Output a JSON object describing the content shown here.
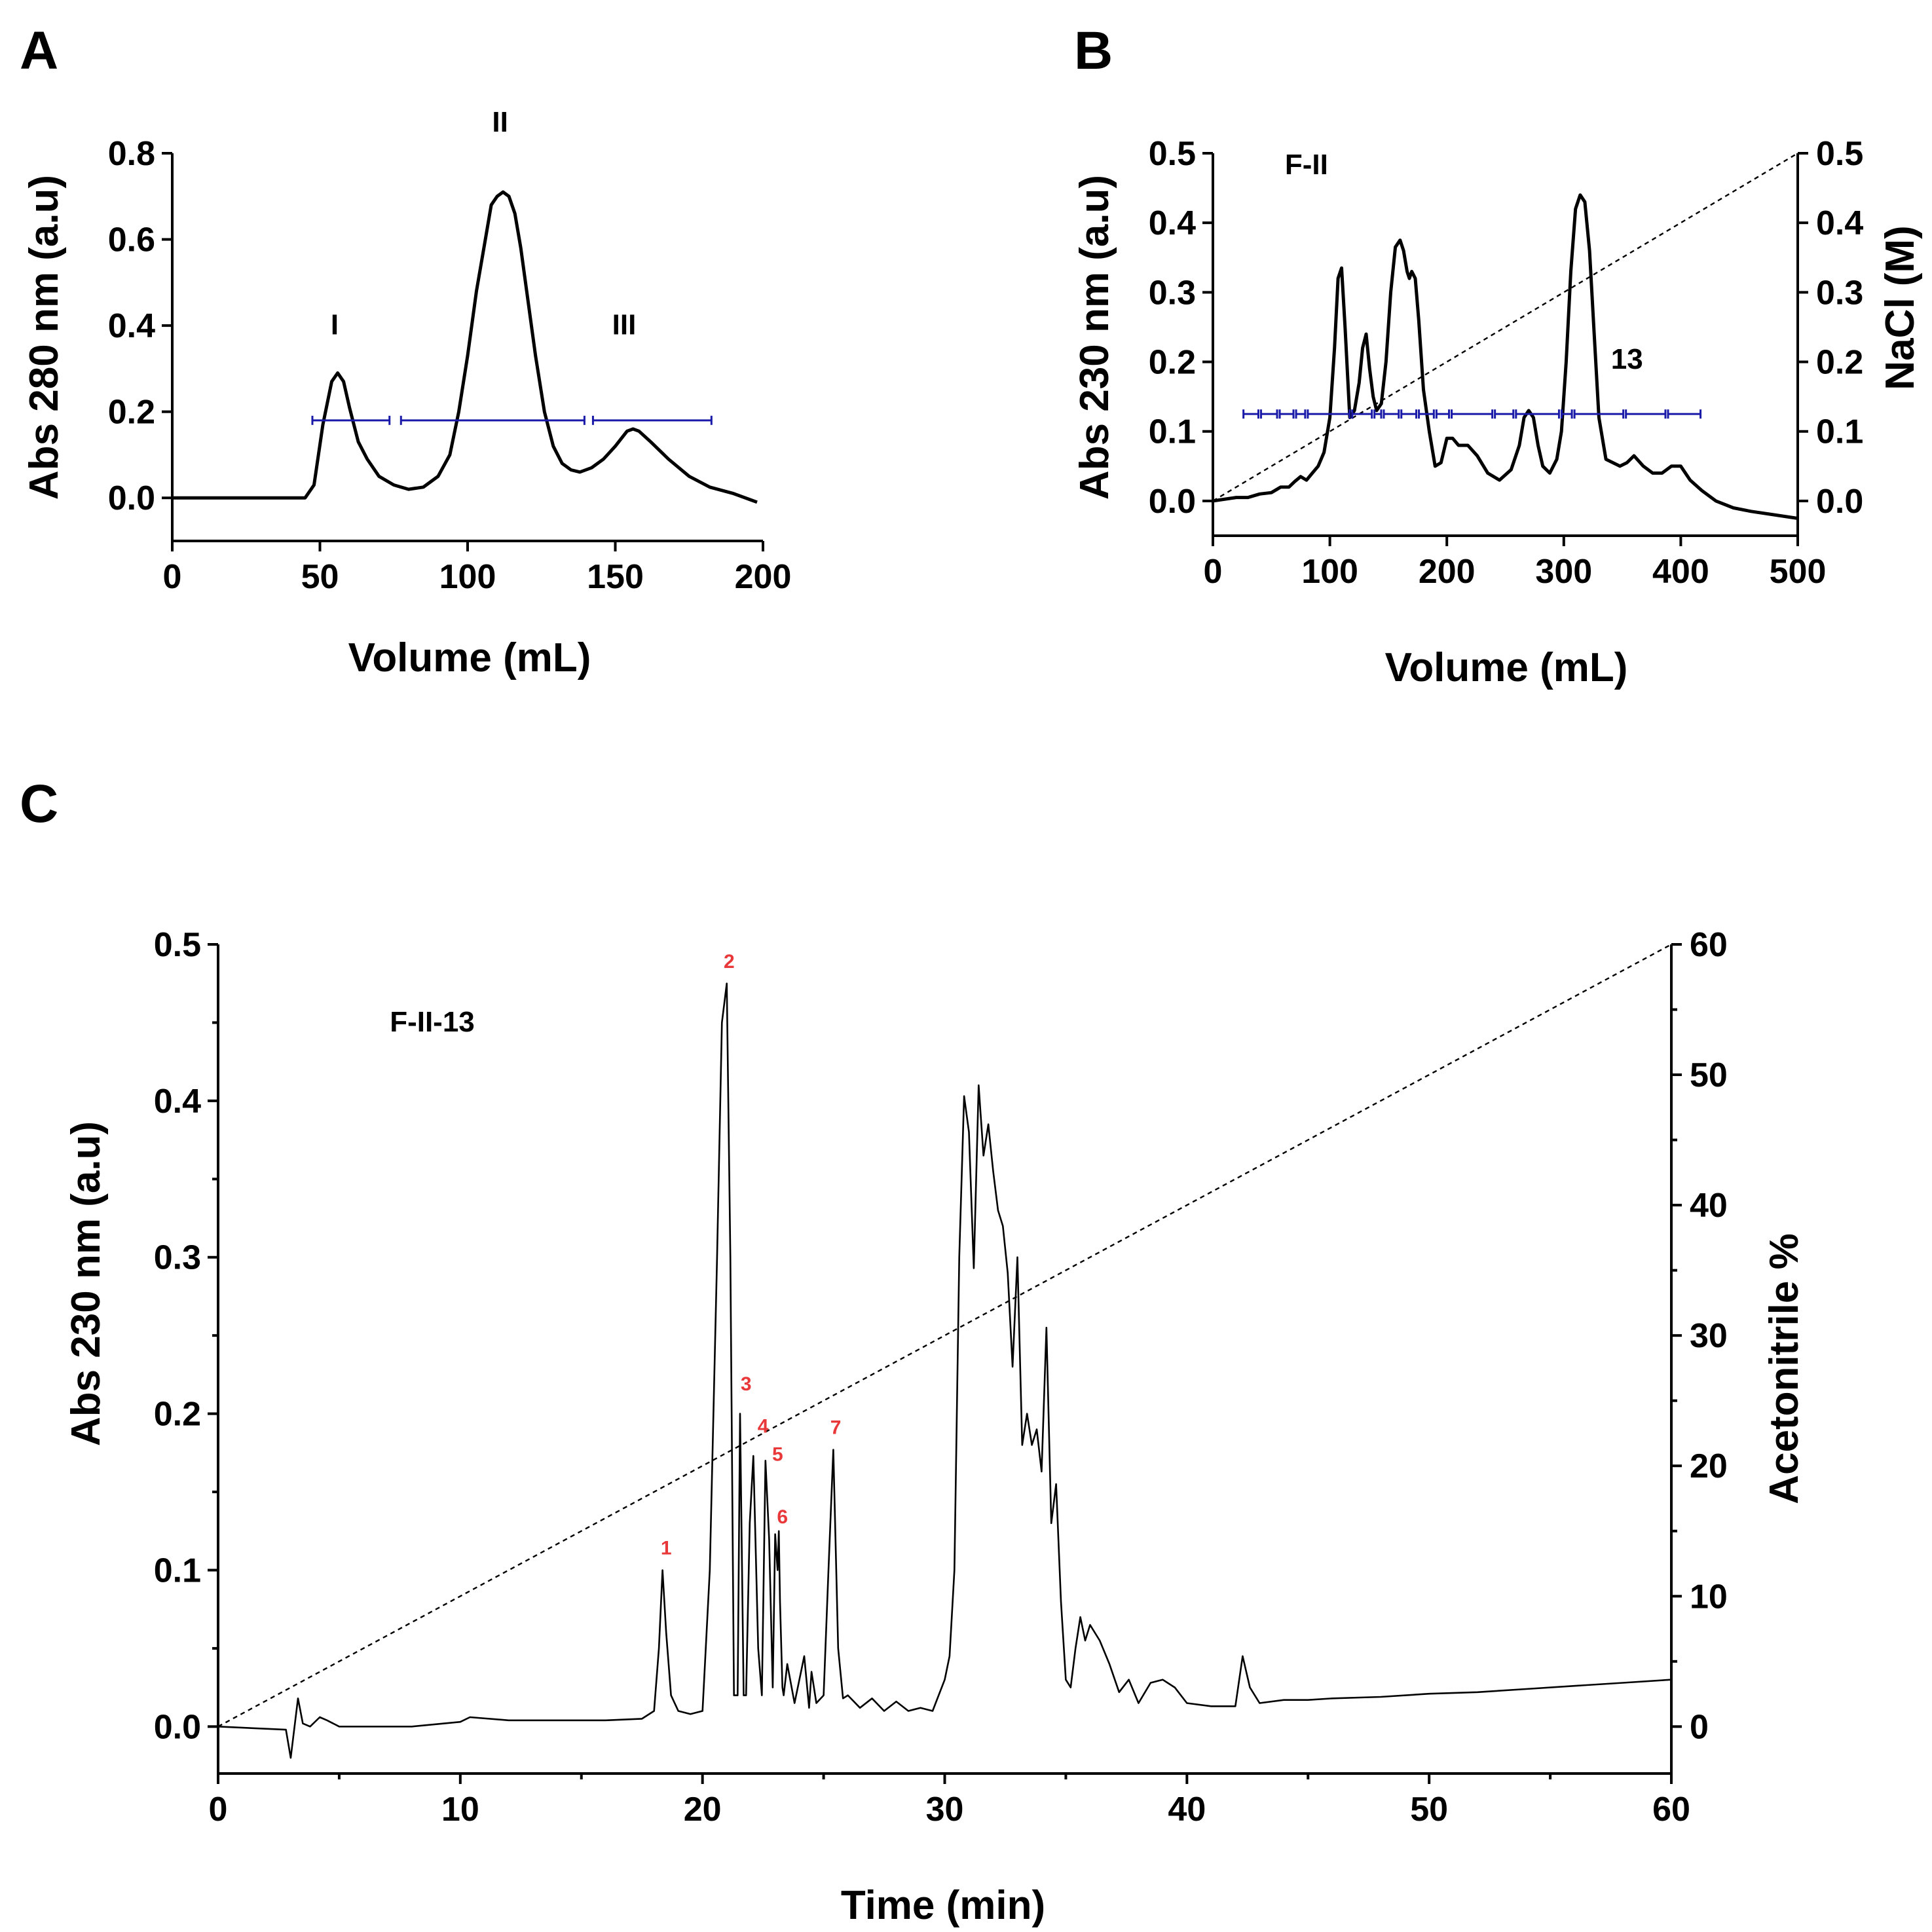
{
  "colors": {
    "trace": "#000000",
    "fraction_bars": "#1a1aa8",
    "peak_labels": "#e8383a"
  },
  "chart_data": [
    {
      "panel": "A",
      "type": "line",
      "xlabel": "Volume (mL)",
      "ylabel": "Abs 280 nm (a.u)",
      "xlim": [
        0,
        200
      ],
      "ylim": [
        -0.1,
        0.8
      ],
      "xticks": [
        "0",
        "50",
        "100",
        "150",
        "200"
      ],
      "yticks": [
        "0.0",
        "0.2",
        "0.4",
        "0.6",
        "0.8"
      ],
      "series": [
        {
          "name": "Abs 280 nm",
          "x": [
            0,
            45,
            48,
            51,
            54,
            56,
            58,
            60,
            63,
            66,
            70,
            75,
            80,
            85,
            90,
            94,
            97,
            100,
            103,
            106,
            108,
            110,
            112,
            114,
            116,
            118,
            120,
            123,
            126,
            129,
            132,
            135,
            138,
            142,
            146,
            150,
            154,
            156,
            158,
            162,
            168,
            175,
            182,
            190,
            198
          ],
          "y": [
            0.0,
            0.0,
            0.03,
            0.17,
            0.27,
            0.29,
            0.27,
            0.21,
            0.13,
            0.09,
            0.05,
            0.03,
            0.02,
            0.025,
            0.05,
            0.1,
            0.2,
            0.33,
            0.48,
            0.6,
            0.68,
            0.7,
            0.71,
            0.7,
            0.66,
            0.58,
            0.48,
            0.33,
            0.2,
            0.12,
            0.08,
            0.065,
            0.06,
            0.07,
            0.09,
            0.12,
            0.155,
            0.16,
            0.155,
            0.13,
            0.09,
            0.05,
            0.025,
            0.01,
            -0.01
          ]
        }
      ],
      "fractions_ml": [
        [
          47,
          74
        ],
        [
          77,
          140
        ],
        [
          142,
          183
        ]
      ],
      "fraction_y": 0.18,
      "annotations": [
        {
          "text": "I",
          "x": 55,
          "y": 0.38
        },
        {
          "text": "II",
          "x": 111,
          "y": 0.85
        },
        {
          "text": "III",
          "x": 153,
          "y": 0.38
        }
      ]
    },
    {
      "panel": "B",
      "type": "line",
      "xlabel": "Volume (mL)",
      "ylabel": "Abs 230 nm (a.u)",
      "y2label": "NaCl (M)",
      "xlim": [
        0,
        500
      ],
      "ylim": [
        -0.05,
        0.5
      ],
      "y2lim": [
        -0.05,
        0.5
      ],
      "xticks": [
        "0",
        "100",
        "200",
        "300",
        "400",
        "500"
      ],
      "yticks": [
        "0.0",
        "0.1",
        "0.2",
        "0.3",
        "0.4",
        "0.5"
      ],
      "y2ticks": [
        "0.0",
        "0.1",
        "0.2",
        "0.3",
        "0.4",
        "0.5"
      ],
      "series": [
        {
          "name": "Abs 230 nm",
          "x": [
            0,
            20,
            30,
            40,
            50,
            58,
            65,
            70,
            75,
            80,
            85,
            90,
            95,
            100,
            104,
            107,
            110,
            113,
            117,
            121,
            125,
            128,
            131,
            134,
            137,
            140,
            144,
            148,
            152,
            156,
            160,
            163,
            166,
            168,
            170,
            173,
            176,
            180,
            185,
            190,
            195,
            200,
            205,
            210,
            218,
            226,
            235,
            245,
            255,
            262,
            266,
            270,
            274,
            278,
            282,
            288,
            294,
            298,
            302,
            306,
            310,
            314,
            318,
            322,
            326,
            330,
            336,
            342,
            348,
            354,
            360,
            368,
            376,
            384,
            392,
            400,
            408,
            418,
            430,
            445,
            460,
            480,
            500
          ],
          "y": [
            0.0,
            0.005,
            0.005,
            0.01,
            0.012,
            0.02,
            0.02,
            0.028,
            0.035,
            0.03,
            0.04,
            0.05,
            0.07,
            0.12,
            0.22,
            0.32,
            0.335,
            0.25,
            0.12,
            0.13,
            0.17,
            0.22,
            0.24,
            0.19,
            0.15,
            0.13,
            0.14,
            0.2,
            0.3,
            0.365,
            0.375,
            0.36,
            0.33,
            0.32,
            0.33,
            0.32,
            0.26,
            0.16,
            0.1,
            0.05,
            0.055,
            0.09,
            0.09,
            0.08,
            0.08,
            0.065,
            0.04,
            0.03,
            0.045,
            0.08,
            0.12,
            0.13,
            0.12,
            0.08,
            0.05,
            0.04,
            0.06,
            0.1,
            0.2,
            0.33,
            0.42,
            0.44,
            0.43,
            0.36,
            0.24,
            0.12,
            0.06,
            0.055,
            0.05,
            0.055,
            0.065,
            0.05,
            0.04,
            0.04,
            0.05,
            0.05,
            0.03,
            0.015,
            0.0,
            -0.01,
            -0.015,
            -0.02,
            -0.025
          ]
        },
        {
          "name": "NaCl gradient",
          "x": [
            0,
            500
          ],
          "y": [
            0.0,
            0.5
          ]
        }
      ],
      "fractions_ml": [
        [
          25,
          40
        ],
        [
          40,
          56
        ],
        [
          56,
          70
        ],
        [
          70,
          80
        ],
        [
          80,
          118
        ],
        [
          118,
          137
        ],
        [
          137,
          145
        ],
        [
          145,
          160
        ],
        [
          160,
          175
        ],
        [
          175,
          190
        ],
        [
          190,
          203
        ],
        [
          203,
          240
        ],
        [
          240,
          258
        ],
        [
          258,
          297
        ],
        [
          297,
          308
        ],
        [
          308,
          352
        ],
        [
          352,
          388
        ],
        [
          388,
          418
        ]
      ],
      "fraction_y": 0.125,
      "annotations": [
        {
          "text": "F-II",
          "x": 80,
          "y": 0.47
        },
        {
          "text": "13",
          "x": 354,
          "y": 0.19
        }
      ]
    },
    {
      "panel": "C",
      "type": "line",
      "xlabel": "Time (min)",
      "ylabel": "Abs 230 nm (a.u)",
      "y2label": "Acetonitrile %",
      "title": "F-II-13",
      "xlim": [
        0,
        60
      ],
      "ylim": [
        -0.03,
        0.5
      ],
      "y2lim": [
        -3.6,
        60
      ],
      "xticks": [
        "0",
        "10",
        "20",
        "30",
        "40",
        "50",
        "60"
      ],
      "yticks": [
        "0.0",
        "0.1",
        "0.2",
        "0.3",
        "0.4",
        "0.5"
      ],
      "y2ticks": [
        "0",
        "10",
        "20",
        "30",
        "40",
        "50",
        "60"
      ],
      "series": [
        {
          "name": "Abs 230 nm",
          "x": [
            0,
            2.8,
            3.0,
            3.3,
            3.5,
            3.8,
            4.2,
            4.5,
            5.0,
            6.0,
            8.0,
            10.0,
            10.4,
            12.0,
            14.0,
            16.0,
            17.5,
            18.0,
            18.2,
            18.35,
            18.5,
            18.7,
            19.0,
            19.5,
            20.0,
            20.3,
            20.6,
            20.8,
            21.0,
            21.15,
            21.3,
            21.45,
            21.55,
            21.7,
            21.8,
            21.95,
            22.1,
            22.3,
            22.45,
            22.6,
            22.75,
            22.9,
            23.0,
            23.1,
            23.15,
            23.2,
            23.3,
            23.35,
            23.5,
            23.8,
            24.2,
            24.4,
            24.5,
            24.7,
            25.0,
            25.2,
            25.4,
            25.6,
            25.8,
            26.0,
            26.5,
            27.0,
            27.5,
            28.0,
            28.5,
            29.0,
            29.5,
            30.0,
            30.2,
            30.4,
            30.6,
            30.8,
            31.0,
            31.2,
            31.4,
            31.6,
            31.8,
            32.0,
            32.2,
            32.4,
            32.6,
            32.8,
            33.0,
            33.2,
            33.4,
            33.6,
            33.8,
            34.0,
            34.2,
            34.4,
            34.6,
            34.8,
            35.0,
            35.2,
            35.4,
            35.6,
            35.8,
            36.0,
            36.4,
            36.8,
            37.2,
            37.6,
            38.0,
            38.5,
            39.0,
            39.5,
            40.0,
            41.0,
            42.0,
            42.3,
            42.6,
            43.0,
            44.0,
            45.0,
            46.0,
            48.0,
            50.0,
            52.0,
            54.0,
            56.0,
            58.0,
            60.0
          ],
          "y": [
            0.0,
            -0.002,
            -0.02,
            0.018,
            0.002,
            0.0,
            0.006,
            0.004,
            0.0,
            0.0,
            0.0,
            0.003,
            0.006,
            0.004,
            0.004,
            0.004,
            0.005,
            0.01,
            0.05,
            0.1,
            0.06,
            0.02,
            0.01,
            0.008,
            0.01,
            0.1,
            0.3,
            0.45,
            0.475,
            0.3,
            0.02,
            0.02,
            0.2,
            0.02,
            0.02,
            0.13,
            0.173,
            0.05,
            0.02,
            0.17,
            0.12,
            0.025,
            0.123,
            0.1,
            0.125,
            0.08,
            0.025,
            0.02,
            0.04,
            0.015,
            0.045,
            0.012,
            0.035,
            0.015,
            0.02,
            0.1,
            0.177,
            0.05,
            0.018,
            0.02,
            0.012,
            0.018,
            0.01,
            0.016,
            0.01,
            0.012,
            0.01,
            0.03,
            0.045,
            0.1,
            0.3,
            0.403,
            0.38,
            0.293,
            0.41,
            0.365,
            0.385,
            0.355,
            0.33,
            0.32,
            0.29,
            0.23,
            0.3,
            0.18,
            0.2,
            0.18,
            0.19,
            0.163,
            0.255,
            0.13,
            0.155,
            0.08,
            0.03,
            0.025,
            0.05,
            0.07,
            0.055,
            0.065,
            0.055,
            0.04,
            0.022,
            0.03,
            0.015,
            0.028,
            0.03,
            0.025,
            0.015,
            0.013,
            0.013,
            0.045,
            0.025,
            0.015,
            0.017,
            0.017,
            0.018,
            0.019,
            0.021,
            0.022,
            0.024,
            0.026,
            0.028,
            0.03
          ]
        },
        {
          "name": "Acetonitrile gradient",
          "x": [
            0,
            60
          ],
          "y": [
            0,
            60
          ]
        }
      ],
      "peak_labels": [
        {
          "text": "1",
          "x": 18.5,
          "y": 0.11
        },
        {
          "text": "2",
          "x": 21.1,
          "y": 0.485
        },
        {
          "text": "3",
          "x": 21.8,
          "y": 0.215
        },
        {
          "text": "4",
          "x": 22.5,
          "y": 0.188
        },
        {
          "text": "5",
          "x": 23.1,
          "y": 0.17
        },
        {
          "text": "6",
          "x": 23.3,
          "y": 0.13
        },
        {
          "text": "7",
          "x": 25.5,
          "y": 0.187
        }
      ]
    }
  ]
}
